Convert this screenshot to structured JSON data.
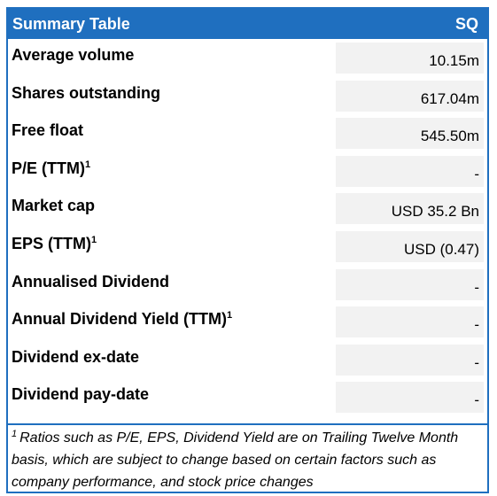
{
  "header": {
    "title": "Summary Table",
    "ticker": "SQ"
  },
  "rows": [
    {
      "label": "Average volume",
      "sup": "",
      "value": "10.15m"
    },
    {
      "label": "Shares outstanding",
      "sup": "",
      "value": "617.04m"
    },
    {
      "label": "Free float",
      "sup": "",
      "value": "545.50m"
    },
    {
      "label": "P/E (TTM)",
      "sup": "1",
      "value": "-"
    },
    {
      "label": "Market cap",
      "sup": "",
      "value": "USD 35.2 Bn"
    },
    {
      "label": "EPS (TTM)",
      "sup": "1",
      "value": "USD (0.47)"
    },
    {
      "label": "Annualised Dividend",
      "sup": "",
      "value": "-"
    },
    {
      "label": "Annual Dividend Yield (TTM)",
      "sup": "1",
      "value": "-"
    },
    {
      "label": "Dividend ex-date",
      "sup": "",
      "value": "-"
    },
    {
      "label": "Dividend pay-date",
      "sup": "",
      "value": "-"
    }
  ],
  "footnote": {
    "marker": "1",
    "text": "Ratios such as P/E, EPS, Dividend Yield are on Trailing Twelve Month basis, which are subject to change based on certain factors such as company performance, and stock price changes"
  },
  "colors": {
    "accent": "#1f6fbf",
    "value_bg": "#f2f2f2"
  }
}
